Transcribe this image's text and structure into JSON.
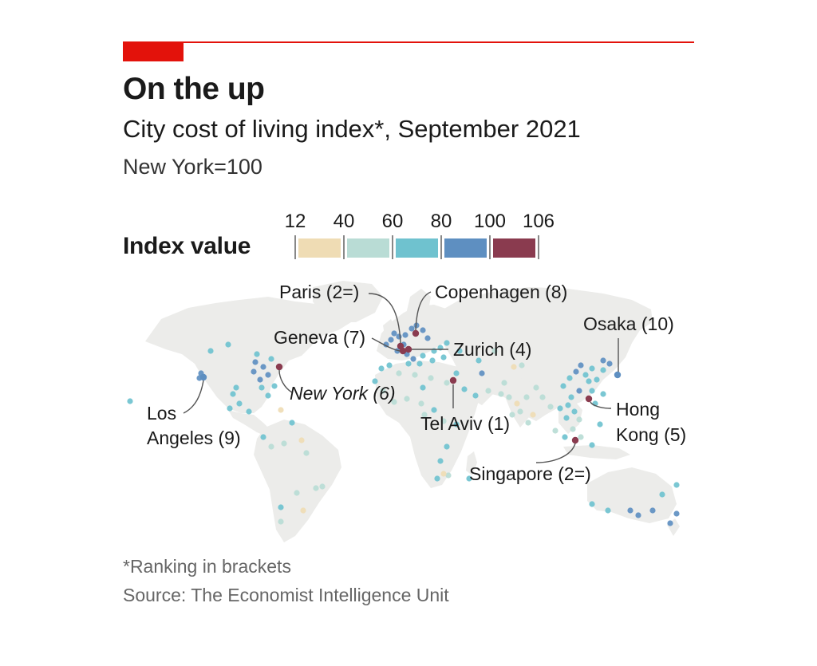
{
  "header": {
    "title": "On the up",
    "subtitle": "City cost of living index*, September 2021",
    "unit": "New York=100"
  },
  "legend": {
    "title": "Index value",
    "ticks": [
      "12",
      "40",
      "60",
      "80",
      "100",
      "106"
    ],
    "colors": [
      "#efdcb4",
      "#b9dcd5",
      "#6fc2cf",
      "#5e8fc1",
      "#8a3b4f"
    ]
  },
  "colors": {
    "land": "#ececea",
    "accent": "#e3120b",
    "leader": "#555555"
  },
  "map": {
    "cities": [
      {
        "label": "Paris",
        "rank": "(2=)",
        "value": 104
      },
      {
        "label": "Copenhagen",
        "rank": "(8)",
        "value": 100
      },
      {
        "label": "Geneva",
        "rank": "(7)",
        "value": 101
      },
      {
        "label": "Zurich",
        "rank": "(4)",
        "value": 103
      },
      {
        "label": "Osaka",
        "rank": "(10)",
        "value": 98
      },
      {
        "label": "New York",
        "rank": "(6)",
        "value": 100
      },
      {
        "label": "Los",
        "label2": "Angeles",
        "rank": "(9)",
        "value": 99
      },
      {
        "label": "Tel Aviv",
        "rank": "(1)",
        "value": 106
      },
      {
        "label": "Hong",
        "label2": "Kong",
        "rank": "(5)",
        "value": 103
      },
      {
        "label": "Singapore",
        "rank": "(2=)",
        "value": 104
      }
    ]
  },
  "footer": {
    "footnote": "*Ranking in brackets",
    "source": "Source: The Economist Intelligence Unit"
  }
}
